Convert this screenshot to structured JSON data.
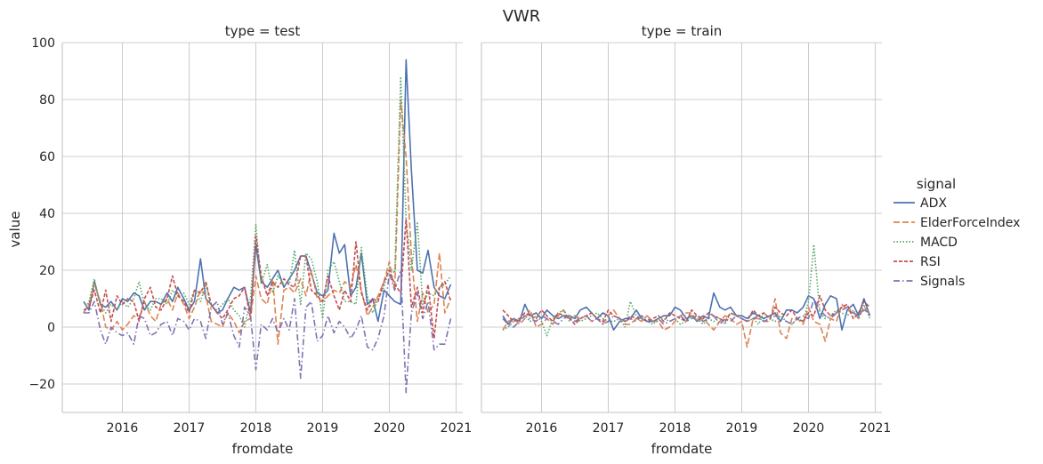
{
  "chart_data": {
    "type": "line",
    "title": "VWR",
    "xlabel": "fromdate",
    "ylabel": "value",
    "ylim": [
      -30,
      100
    ],
    "yticks": [
      -20,
      0,
      20,
      40,
      60,
      80,
      100
    ],
    "ytick_labels": [
      "−20",
      "0",
      "20",
      "40",
      "60",
      "80",
      "100"
    ],
    "xlim": [
      2015.1,
      2021.1
    ],
    "xticks": [
      2016,
      2017,
      2018,
      2019,
      2020,
      2021
    ],
    "xtick_labels": [
      "2016",
      "2017",
      "2018",
      "2019",
      "2020",
      "2021"
    ],
    "grid": true,
    "legend": {
      "title": "signal",
      "position": "right"
    },
    "series_styles": [
      {
        "name": "ADX",
        "color": "#4c72b0",
        "dash": ""
      },
      {
        "name": "ElderForceIndex",
        "color": "#dd8452",
        "dash": "7,3"
      },
      {
        "name": "MACD",
        "color": "#55a868",
        "dash": "1.5,2"
      },
      {
        "name": "RSI",
        "color": "#c44e52",
        "dash": "4,2"
      },
      {
        "name": "Signals",
        "color": "#8172b3",
        "dash": "7,3,1.5,3"
      }
    ],
    "x": [
      2015.42,
      2015.5,
      2015.58,
      2015.67,
      2015.75,
      2015.83,
      2015.92,
      2016.0,
      2016.08,
      2016.17,
      2016.25,
      2016.33,
      2016.42,
      2016.5,
      2016.58,
      2016.67,
      2016.75,
      2016.83,
      2016.92,
      2017.0,
      2017.08,
      2017.17,
      2017.25,
      2017.33,
      2017.42,
      2017.5,
      2017.58,
      2017.67,
      2017.75,
      2017.83,
      2017.92,
      2018.0,
      2018.08,
      2018.17,
      2018.25,
      2018.33,
      2018.42,
      2018.5,
      2018.58,
      2018.67,
      2018.75,
      2018.83,
      2018.92,
      2019.0,
      2019.08,
      2019.17,
      2019.25,
      2019.33,
      2019.42,
      2019.5,
      2019.58,
      2019.67,
      2019.75,
      2019.83,
      2019.92,
      2020.0,
      2020.08,
      2020.17,
      2020.25,
      2020.33,
      2020.42,
      2020.5,
      2020.58,
      2020.67,
      2020.75,
      2020.83,
      2020.92
    ],
    "panels": [
      {
        "title": "type = test",
        "series": [
          {
            "name": "ADX",
            "values": [
              9,
              6,
              16,
              8,
              7,
              9,
              6,
              10,
              9,
              12,
              11,
              6,
              9,
              9,
              8,
              12,
              9,
              14,
              10,
              6,
              9,
              24,
              10,
              8,
              5,
              6,
              10,
              14,
              13,
              14,
              5,
              29,
              16,
              14,
              17,
              20,
              14,
              17,
              20,
              25,
              25,
              19,
              12,
              11,
              13,
              33,
              26,
              29,
              11,
              14,
              26,
              8,
              10,
              2,
              13,
              11,
              9,
              8,
              94,
              55,
              20,
              19,
              27,
              14,
              11,
              10,
              15
            ]
          },
          {
            "name": "ElderForceIndex",
            "values": [
              5,
              8,
              15,
              9,
              0,
              -1,
              2,
              -1,
              1,
              4,
              3,
              9,
              4,
              2,
              8,
              10,
              6,
              12,
              8,
              3,
              7,
              13,
              11,
              2,
              1,
              0,
              5,
              2,
              -2,
              2,
              3,
              18,
              10,
              8,
              17,
              -6,
              13,
              14,
              12,
              17,
              11,
              20,
              10,
              9,
              11,
              13,
              12,
              16,
              14,
              22,
              13,
              4,
              7,
              11,
              16,
              23,
              13,
              80,
              60,
              25,
              2,
              12,
              5,
              8,
              26,
              5,
              10
            ]
          },
          {
            "name": "MACD",
            "values": [
              5,
              9,
              17,
              8,
              5,
              8,
              6,
              9,
              7,
              10,
              16,
              8,
              6,
              10,
              10,
              8,
              13,
              11,
              12,
              8,
              13,
              9,
              15,
              7,
              6,
              8,
              10,
              6,
              4,
              0,
              10,
              36,
              15,
              22,
              12,
              18,
              15,
              15,
              27,
              8,
              26,
              24,
              16,
              3,
              20,
              23,
              16,
              9,
              9,
              8,
              28,
              11,
              5,
              10,
              14,
              21,
              19,
              88,
              38,
              20,
              37,
              8,
              12,
              11,
              14,
              15,
              18
            ]
          },
          {
            "name": "RSI",
            "values": [
              6,
              7,
              13,
              5,
              13,
              2,
              11,
              8,
              10,
              9,
              2,
              10,
              14,
              7,
              6,
              10,
              18,
              11,
              9,
              5,
              13,
              12,
              16,
              8,
              5,
              3,
              6,
              10,
              11,
              14,
              3,
              32,
              18,
              11,
              16,
              14,
              17,
              15,
              14,
              25,
              25,
              13,
              11,
              9,
              18,
              11,
              6,
              13,
              9,
              30,
              12,
              6,
              10,
              9,
              16,
              20,
              15,
              12,
              38,
              7,
              14,
              5,
              15,
              -4,
              14,
              16,
              9
            ]
          },
          {
            "name": "Signals",
            "values": [
              5,
              5,
              9,
              -1,
              -6,
              0,
              -2,
              -3,
              -2,
              -6,
              4,
              3,
              -3,
              -2,
              1,
              2,
              -3,
              3,
              2,
              -1,
              3,
              2,
              -4,
              7,
              9,
              1,
              5,
              -3,
              -7,
              7,
              4,
              -15,
              1,
              -1,
              3,
              -2,
              3,
              -1,
              10,
              -18,
              7,
              9,
              -5,
              -3,
              4,
              -2,
              2,
              0,
              -4,
              -1,
              4,
              -7,
              -8,
              -4,
              4,
              19,
              13,
              20,
              -23,
              5,
              12,
              3,
              9,
              -8,
              -6,
              -6,
              3
            ]
          }
        ]
      },
      {
        "title": "type = train",
        "series": [
          {
            "name": "ADX",
            "values": [
              4,
              1,
              3,
              2,
              8,
              4,
              5,
              3,
              6,
              4,
              3,
              4,
              4,
              3,
              6,
              7,
              5,
              3,
              5,
              4,
              -1,
              2,
              3,
              3,
              6,
              3,
              2,
              2,
              3,
              4,
              4,
              7,
              6,
              3,
              4,
              2,
              4,
              3,
              12,
              7,
              6,
              7,
              4,
              4,
              3,
              5,
              4,
              3,
              4,
              5,
              2,
              6,
              6,
              5,
              7,
              11,
              10,
              3,
              8,
              11,
              10,
              -1,
              6,
              8,
              4,
              10,
              4
            ]
          },
          {
            "name": "ElderForceIndex",
            "values": [
              -1,
              2,
              3,
              1,
              3,
              6,
              0,
              1,
              3,
              1,
              4,
              6,
              3,
              4,
              3,
              4,
              2,
              3,
              1,
              4,
              6,
              3,
              1,
              1,
              3,
              2,
              4,
              2,
              2,
              -1,
              0,
              2,
              4,
              5,
              5,
              2,
              3,
              1,
              -1,
              2,
              4,
              3,
              1,
              2,
              -7,
              3,
              3,
              2,
              2,
              10,
              -2,
              -4,
              3,
              3,
              1,
              7,
              2,
              1,
              -5,
              3,
              2,
              8,
              6,
              5,
              3,
              7,
              5
            ]
          },
          {
            "name": "MACD",
            "values": [
              -1,
              0,
              2,
              3,
              4,
              2,
              4,
              2,
              -3,
              3,
              5,
              6,
              2,
              4,
              2,
              3,
              4,
              5,
              3,
              2,
              2,
              3,
              0,
              9,
              4,
              3,
              2,
              1,
              3,
              3,
              2,
              3,
              1,
              2,
              4,
              3,
              1,
              3,
              2,
              3,
              1,
              5,
              4,
              3,
              2,
              3,
              1,
              5,
              3,
              2,
              4,
              2,
              1,
              3,
              2,
              9,
              29,
              5,
              3,
              4,
              6,
              5,
              4,
              6,
              3,
              8,
              3
            ]
          },
          {
            "name": "RSI",
            "values": [
              6,
              4,
              2,
              3,
              5,
              4,
              3,
              6,
              4,
              2,
              5,
              4,
              3,
              1,
              3,
              4,
              5,
              3,
              2,
              6,
              4,
              3,
              2,
              4,
              3,
              4,
              2,
              3,
              4,
              2,
              5,
              4,
              3,
              2,
              6,
              4,
              3,
              5,
              4,
              3,
              2,
              5,
              4,
              3,
              2,
              6,
              4,
              5,
              3,
              7,
              5,
              4,
              6,
              3,
              2,
              5,
              4,
              11,
              6,
              4,
              5,
              7,
              8,
              3,
              5,
              9,
              7
            ]
          },
          {
            "name": "Signals",
            "values": [
              3,
              1,
              0,
              2,
              4,
              3,
              2,
              4,
              3,
              2,
              1,
              3,
              4,
              2,
              3,
              4,
              2,
              3,
              1,
              2,
              4,
              3,
              2,
              3,
              2,
              4,
              3,
              2,
              3,
              1,
              2,
              3,
              4,
              2,
              3,
              4,
              2,
              3,
              4,
              1,
              3,
              2,
              4,
              3,
              2,
              3,
              4,
              2,
              3,
              4,
              3,
              2,
              1,
              3,
              4,
              3,
              10,
              6,
              4,
              3,
              5,
              6,
              7,
              5,
              4,
              6,
              5
            ]
          }
        ]
      }
    ]
  }
}
